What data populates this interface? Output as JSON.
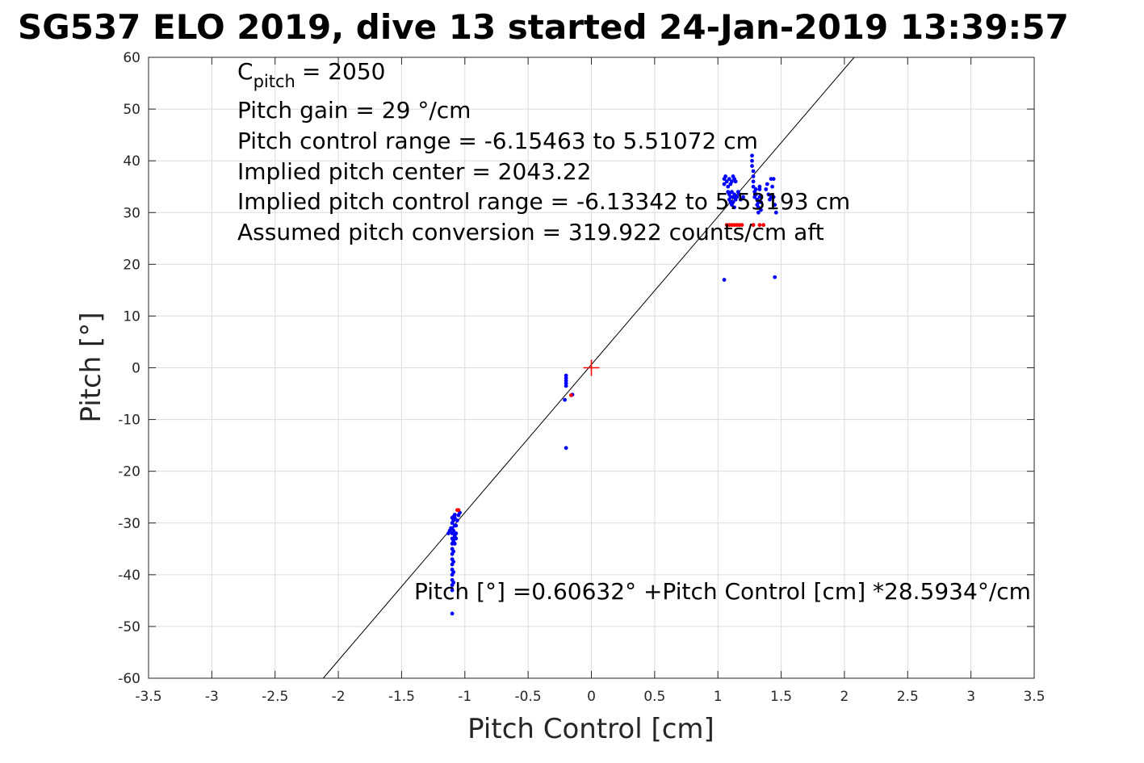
{
  "chart_data": {
    "type": "scatter",
    "title": "SG537 ELO 2019, dive 13 started 24-Jan-2019 13:39:57",
    "xlabel": "Pitch Control [cm]",
    "ylabel": "Pitch [°]",
    "xlim": [
      -3.5,
      3.5
    ],
    "ylim": [
      -60,
      60
    ],
    "x_ticks": [
      -3.5,
      -3,
      -2.5,
      -2,
      -1.5,
      -1,
      -0.5,
      0,
      0.5,
      1,
      1.5,
      2,
      2.5,
      3,
      3.5
    ],
    "x_tick_labels": [
      "-3.5",
      "-3",
      "-2.5",
      "-2",
      "-1.5",
      "-1",
      "-0.5",
      "0",
      "0.5",
      "1",
      "1.5",
      "2",
      "2.5",
      "3",
      "3.5"
    ],
    "y_ticks": [
      -60,
      -50,
      -40,
      -30,
      -20,
      -10,
      0,
      10,
      20,
      30,
      40,
      50,
      60
    ],
    "y_tick_labels": [
      "-60",
      "-50",
      "-40",
      "-30",
      "-20",
      "-10",
      "0",
      "10",
      "20",
      "30",
      "40",
      "50",
      "60"
    ],
    "grid": true,
    "colors": {
      "points": "#0000ff",
      "flagged": "#ff0000",
      "fit": "#000000",
      "center": "#ff0000",
      "grid": "#dcdcdc",
      "axes": "#262626"
    },
    "fit_line": {
      "intercept": 0.60632,
      "slope": 28.5934
    },
    "center_marker": {
      "x": 0,
      "y": 0
    },
    "annotation_lines": [
      "= 2050",
      "Pitch gain = 29 °/cm",
      "Pitch control range = -6.15463 to 5.51072 cm",
      "Implied pitch center = 2043.22",
      "Implied pitch control range = -6.13342 to 5.53193 cm",
      "Assumed pitch conversion = 319.922 counts/cm aft"
    ],
    "cpitch_symbol": "C",
    "cpitch_subscript": "pitch",
    "fit_label": "Pitch [°] =0.60632° +Pitch Control [cm] *28.5934°/cm",
    "series": [
      {
        "color": "#0000ff",
        "points": [
          [
            -1.1,
            -29.0
          ],
          [
            -1.1,
            -30.0
          ],
          [
            -1.1,
            -31.0
          ],
          [
            -1.1,
            -32.0
          ],
          [
            -1.1,
            -33.0
          ],
          [
            -1.1,
            -34.0
          ],
          [
            -1.1,
            -35.0
          ],
          [
            -1.1,
            -36.0
          ],
          [
            -1.1,
            -37.0
          ],
          [
            -1.1,
            -38.0
          ],
          [
            -1.1,
            -39.0
          ],
          [
            -1.1,
            -40.0
          ],
          [
            -1.1,
            -41.0
          ],
          [
            -1.1,
            -42.0
          ],
          [
            -1.1,
            -43.0
          ],
          [
            -1.09,
            -29.5
          ],
          [
            -1.09,
            -31.5
          ],
          [
            -1.09,
            -33.5
          ],
          [
            -1.09,
            -35.5
          ],
          [
            -1.09,
            -37.5
          ],
          [
            -1.09,
            -39.5
          ],
          [
            -1.09,
            -41.5
          ],
          [
            -1.08,
            -29.0
          ],
          [
            -1.08,
            -30.5
          ],
          [
            -1.08,
            -32.5
          ],
          [
            -1.08,
            -34.0
          ],
          [
            -1.12,
            -31.5
          ],
          [
            -1.13,
            -32.0
          ],
          [
            -1.11,
            -31.0
          ],
          [
            -1.07,
            -30.5
          ],
          [
            -1.06,
            -29.5
          ],
          [
            -1.07,
            -32.0
          ],
          [
            -1.07,
            -33.0
          ],
          [
            -1.05,
            -28.5
          ],
          [
            -1.04,
            -28.0
          ],
          [
            -1.09,
            -28.8
          ],
          [
            -1.08,
            -28.4
          ],
          [
            -1.1,
            -47.5
          ],
          [
            -0.2,
            -1.5
          ],
          [
            -0.2,
            -2.0
          ],
          [
            -0.2,
            -2.5
          ],
          [
            -0.2,
            -3.0
          ],
          [
            -0.2,
            -3.5
          ],
          [
            -0.21,
            -6.2
          ],
          [
            -0.15,
            -5.2
          ],
          [
            -0.2,
            -15.5
          ],
          [
            1.05,
            36.5
          ],
          [
            1.05,
            35.5
          ],
          [
            1.06,
            37.0
          ],
          [
            1.07,
            36.0
          ],
          [
            1.08,
            35.0
          ],
          [
            1.09,
            36.5
          ],
          [
            1.1,
            35.5
          ],
          [
            1.11,
            36.0
          ],
          [
            1.12,
            37.0
          ],
          [
            1.13,
            36.5
          ],
          [
            1.14,
            36.0
          ],
          [
            1.08,
            34.0
          ],
          [
            1.09,
            33.5
          ],
          [
            1.1,
            33.0
          ],
          [
            1.11,
            34.0
          ],
          [
            1.12,
            33.0
          ],
          [
            1.13,
            33.5
          ],
          [
            1.14,
            32.5
          ],
          [
            1.15,
            33.0
          ],
          [
            1.16,
            34.0
          ],
          [
            1.17,
            33.5
          ],
          [
            1.18,
            32.5
          ],
          [
            1.2,
            33.0
          ],
          [
            1.09,
            32.5
          ],
          [
            1.1,
            32.0
          ],
          [
            1.11,
            31.5
          ],
          [
            1.12,
            32.0
          ],
          [
            1.13,
            31.0
          ],
          [
            1.27,
            41.0
          ],
          [
            1.27,
            40.0
          ],
          [
            1.27,
            39.0
          ],
          [
            1.28,
            38.0
          ],
          [
            1.28,
            37.0
          ],
          [
            1.28,
            36.0
          ],
          [
            1.28,
            35.0
          ],
          [
            1.29,
            34.0
          ],
          [
            1.29,
            33.0
          ],
          [
            1.3,
            34.5
          ],
          [
            1.3,
            33.5
          ],
          [
            1.31,
            32.5
          ],
          [
            1.31,
            31.5
          ],
          [
            1.32,
            32.0
          ],
          [
            1.32,
            31.0
          ],
          [
            1.32,
            30.0
          ],
          [
            1.33,
            33.0
          ],
          [
            1.33,
            34.5
          ],
          [
            1.33,
            35.0
          ],
          [
            1.34,
            32.0
          ],
          [
            1.34,
            30.5
          ],
          [
            1.38,
            34.5
          ],
          [
            1.39,
            35.5
          ],
          [
            1.4,
            33.5
          ],
          [
            1.41,
            32.5
          ],
          [
            1.42,
            33.0
          ],
          [
            1.42,
            36.5
          ],
          [
            1.43,
            35.0
          ],
          [
            1.44,
            33.0
          ],
          [
            1.45,
            31.5
          ],
          [
            1.46,
            30.0
          ],
          [
            1.44,
            36.5
          ],
          [
            1.05,
            17.0
          ],
          [
            1.45,
            17.5
          ]
        ]
      },
      {
        "color": "#ff0000",
        "points": [
          [
            -1.06,
            -27.5
          ],
          [
            -1.05,
            -27.5
          ],
          [
            -0.16,
            -5.3
          ],
          [
            1.07,
            27.6
          ],
          [
            1.09,
            27.6
          ],
          [
            1.11,
            27.6
          ],
          [
            1.13,
            27.6
          ],
          [
            1.15,
            27.6
          ],
          [
            1.17,
            27.6
          ],
          [
            1.19,
            27.6
          ],
          [
            1.28,
            27.6
          ],
          [
            1.33,
            27.6
          ],
          [
            1.36,
            27.6
          ]
        ]
      }
    ]
  }
}
